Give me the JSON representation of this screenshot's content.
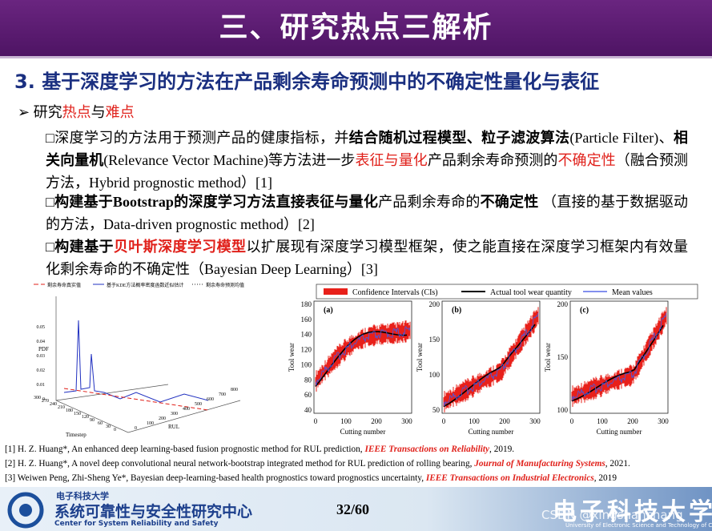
{
  "header": {
    "title": "三、研究热点三解析"
  },
  "section": {
    "number": "3.",
    "title": "基于深度学习的方法在产品剩余寿命预测中的不确定性量化与表征"
  },
  "bullet": {
    "marker": "➢",
    "segments": [
      {
        "text": "研究"
      },
      {
        "text": "热点",
        "color": "red"
      },
      {
        "text": "与"
      },
      {
        "text": "难点",
        "color": "red"
      }
    ]
  },
  "paragraphs": [
    {
      "marker": "□",
      "segments": [
        {
          "text": "深度学习的方法用于预测产品的健康指标，并"
        },
        {
          "text": "结合随机过程模型、粒子滤波算法",
          "weight": "bold"
        },
        {
          "text": "(Particle Filter)、"
        },
        {
          "text": "相关向量机",
          "weight": "bold"
        },
        {
          "text": "(Relevance Vector Machine)等方法进一步"
        },
        {
          "text": "表征与量化",
          "color": "red"
        },
        {
          "text": "产品剩余寿命预测的"
        },
        {
          "text": "不确定性",
          "color": "red"
        },
        {
          "text": "（融合预测方法，Hybrid prognostic method）[1]"
        }
      ]
    },
    {
      "marker": "□",
      "segments": [
        {
          "text": "构建基于Bootstrap的深度学习方法直接表征与量化",
          "weight": "bold"
        },
        {
          "text": "产品剩余寿命的"
        },
        {
          "text": "不确定性",
          "weight": "bold"
        },
        {
          "text": " （直接的基于数据驱动的方法，Data-driven prognostic method）[2]"
        }
      ]
    },
    {
      "marker": "□",
      "segments": [
        {
          "text": "构建基于",
          "weight": "bold"
        },
        {
          "text": "贝叶斯深度学习模型",
          "color": "red",
          "weight": "bold"
        },
        {
          "text": "以扩展现有深度学习模型框架，使之能直接在深度学习框架内有效量化剩余寿命的不确定性（Bayesian Deep Learning）[3]"
        }
      ]
    }
  ],
  "figure_left": {
    "legend": [
      "剩余寿命真实值",
      "基于KDE方法概率密度函数近似估计",
      "剩余寿命预测均值"
    ],
    "y_label": "PDF",
    "x_label": "Timestep",
    "z_label": "RUL",
    "y_ticks": [
      0.05,
      0.04,
      0.03,
      0.02,
      0.01,
      0
    ],
    "x_ticks": [
      300,
      270,
      240,
      210,
      180,
      150,
      120,
      90,
      60,
      30,
      0
    ],
    "z_ticks": [
      0,
      100,
      200,
      300,
      400,
      500,
      600,
      700,
      800
    ]
  },
  "figure_right": {
    "legend": [
      "Confidence Intervals (CIs)",
      "Actual tool wear quantity",
      "Mean values"
    ],
    "panels": [
      {
        "label": "(a)",
        "y_label": "Tool wear",
        "x_label": "Cutting number",
        "y_ticks": [
          180,
          160,
          140,
          120,
          100,
          80,
          60,
          40
        ],
        "x_ticks": [
          0,
          100,
          200,
          300
        ]
      },
      {
        "label": "(b)",
        "y_label": "Tool wear",
        "x_label": "Cutting number",
        "y_ticks": [
          200,
          150,
          100,
          50
        ],
        "x_ticks": [
          0,
          100,
          200,
          300
        ]
      },
      {
        "label": "(c)",
        "y_label": "Tool wear",
        "x_label": "Cutting number",
        "y_ticks": [
          200,
          150,
          100
        ],
        "x_ticks": [
          0,
          100,
          200,
          300
        ]
      }
    ]
  },
  "references": [
    {
      "segments": [
        {
          "text": "[1] H. Z. Huang*, An enhanced deep learning-based fusion prognostic method for RUL prediction, "
        },
        {
          "text": "IEEE Transactions on Reliability",
          "color": "red",
          "weight": "bold",
          "style": "italic"
        },
        {
          "text": ", 2019."
        }
      ]
    },
    {
      "segments": [
        {
          "text": "[2] H. Z. Huang*, A novel deep convolutional neural network-bootstrap integrated method for RUL prediction of rolling bearing, "
        },
        {
          "text": "Journal of Manufacturing Systems",
          "color": "red",
          "weight": "bold",
          "style": "italic"
        },
        {
          "text": ", 2021."
        }
      ]
    },
    {
      "segments": [
        {
          "text": "[3] Weiwen Peng, Zhi-Sheng Ye*, Bayesian deep-learning-based health prognostics toward prognostics uncertainty, "
        },
        {
          "text": "IEEE Transactions on Industrial Electronics",
          "color": "red",
          "weight": "bold",
          "style": "italic"
        },
        {
          "text": ", 2019"
        }
      ]
    }
  ],
  "footer": {
    "university": "电子科技大学",
    "center_cn": "系统可靠性与安全性研究中心",
    "center_en": "Center for System Reliability and Safety",
    "page": "32/60",
    "univ_logo": "电子科技大学",
    "univ_en": "University of Electronic Science and Technology of China",
    "watermark": "CSDN @xingshanchang"
  }
}
